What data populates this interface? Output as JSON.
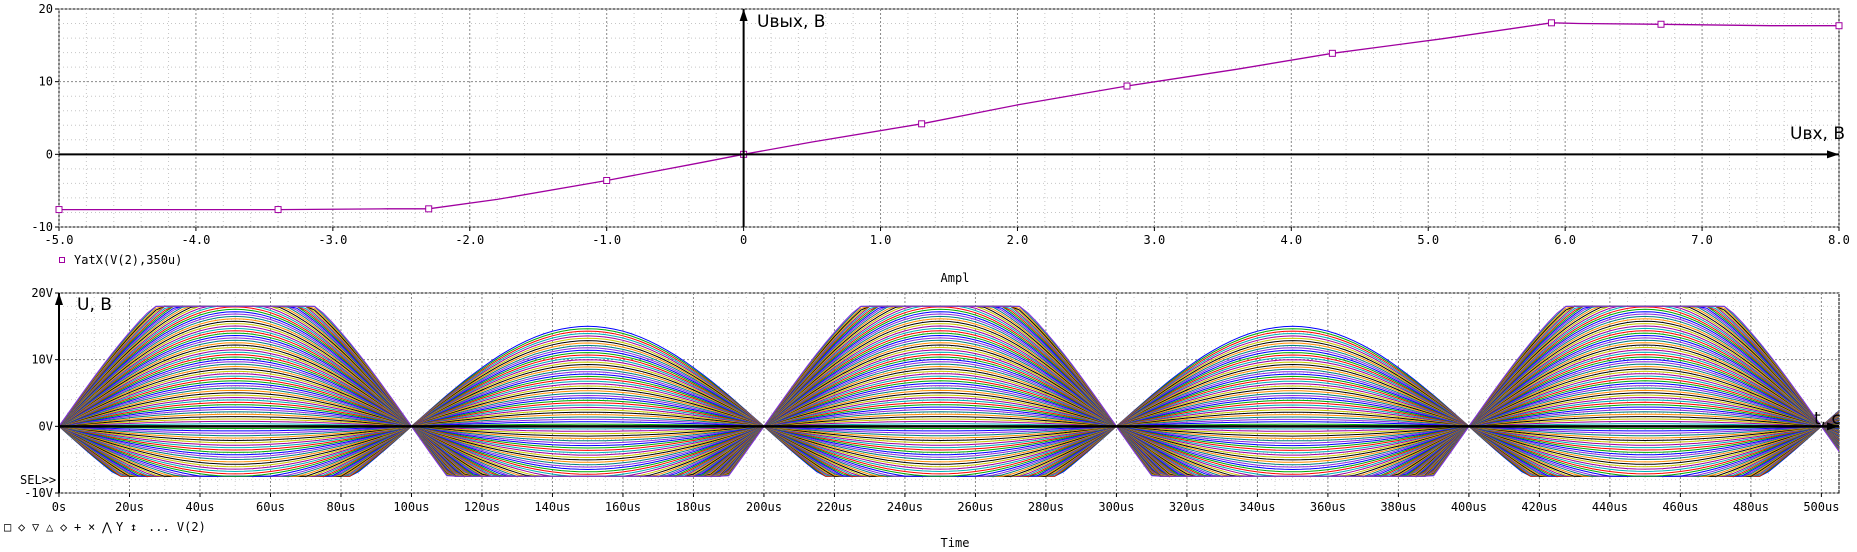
{
  "chart_data": [
    {
      "type": "line",
      "title": "",
      "xlabel": "Ampl",
      "ylabel": "",
      "xlim": [
        -5.0,
        8.0
      ],
      "ylim": [
        -10,
        20
      ],
      "x_ticks": [
        "-5.0",
        "-4.0",
        "-3.0",
        "-2.0",
        "-1.0",
        "0",
        "1.0",
        "2.0",
        "3.0",
        "4.0",
        "5.0",
        "6.0",
        "7.0",
        "8.0"
      ],
      "x_tick_values": [
        -5,
        -4,
        -3,
        -2,
        -1,
        0,
        1,
        2,
        3,
        4,
        5,
        6,
        7,
        8
      ],
      "y_ticks": [
        "-10",
        "0",
        "10",
        "20"
      ],
      "y_tick_values": [
        -10,
        0,
        10,
        20
      ],
      "grid": true,
      "legend": [
        {
          "marker": "□",
          "label": "YatX(V(2),350u)"
        }
      ],
      "annotations": {
        "y_axis": "Uвых, В",
        "x_axis": "Uвх, В"
      },
      "series": [
        {
          "name": "YatX(V(2),350u)",
          "color": "#a000a0",
          "x": [
            -5.0,
            -4.2,
            -3.4,
            -2.6,
            -2.3,
            -1.8,
            -1.0,
            -0.3,
            0.0,
            0.5,
            1.3,
            2.0,
            2.8,
            3.6,
            4.3,
            5.1,
            5.9,
            6.1,
            6.7,
            7.5,
            8.0
          ],
          "y": [
            -7.6,
            -7.6,
            -7.6,
            -7.5,
            -7.5,
            -6.2,
            -3.6,
            -1.1,
            0.0,
            1.7,
            4.2,
            6.8,
            9.4,
            11.7,
            13.9,
            15.9,
            18.1,
            18.0,
            17.9,
            17.7,
            17.7
          ]
        }
      ]
    },
    {
      "type": "line",
      "title": "",
      "xlabel": "Time",
      "ylabel": "",
      "xlim": [
        0,
        505
      ],
      "ylim": [
        -10,
        20
      ],
      "x_ticks": [
        "0s",
        "20us",
        "40us",
        "60us",
        "80us",
        "100us",
        "120us",
        "140us",
        "160us",
        "180us",
        "200us",
        "220us",
        "240us",
        "260us",
        "280us",
        "300us",
        "320us",
        "340us",
        "360us",
        "380us",
        "400us",
        "420us",
        "440us",
        "460us",
        "480us",
        "500us"
      ],
      "x_tick_values": [
        0,
        20,
        40,
        60,
        80,
        100,
        120,
        140,
        160,
        180,
        200,
        220,
        240,
        260,
        280,
        300,
        320,
        340,
        360,
        380,
        400,
        420,
        440,
        460,
        480,
        500
      ],
      "y_ticks": [
        "-10V",
        "0V",
        "10V",
        "20V"
      ],
      "y_tick_values": [
        -10,
        0,
        10,
        20
      ],
      "grid": true,
      "legend_prefix": "SEL>>",
      "legend_markers": [
        "□",
        "◇",
        "▽",
        "△",
        "◇",
        "+",
        "×",
        "⋀",
        "Y",
        "↕"
      ],
      "legend_label": "... V(2)",
      "annotations": {
        "y_axis": "U, В",
        "x_axis": "t, c"
      },
      "series_description": "V(2) family swept over input amplitude -5..8 V; sinusoid period 200 us, clipped at +18 V / -7.5 V",
      "sweep": {
        "amplitude_min": -5.0,
        "amplitude_max": 8.0,
        "period_us": 200,
        "clip_high": 18.0,
        "clip_low": -7.5,
        "gain": 3.0
      },
      "colors": [
        "#0000ff",
        "#00aa00",
        "#ff0000",
        "#00b0b0",
        "#a000a0",
        "#c8c800",
        "#000000",
        "#ff8c00",
        "#008080",
        "#8a2be2"
      ]
    }
  ]
}
